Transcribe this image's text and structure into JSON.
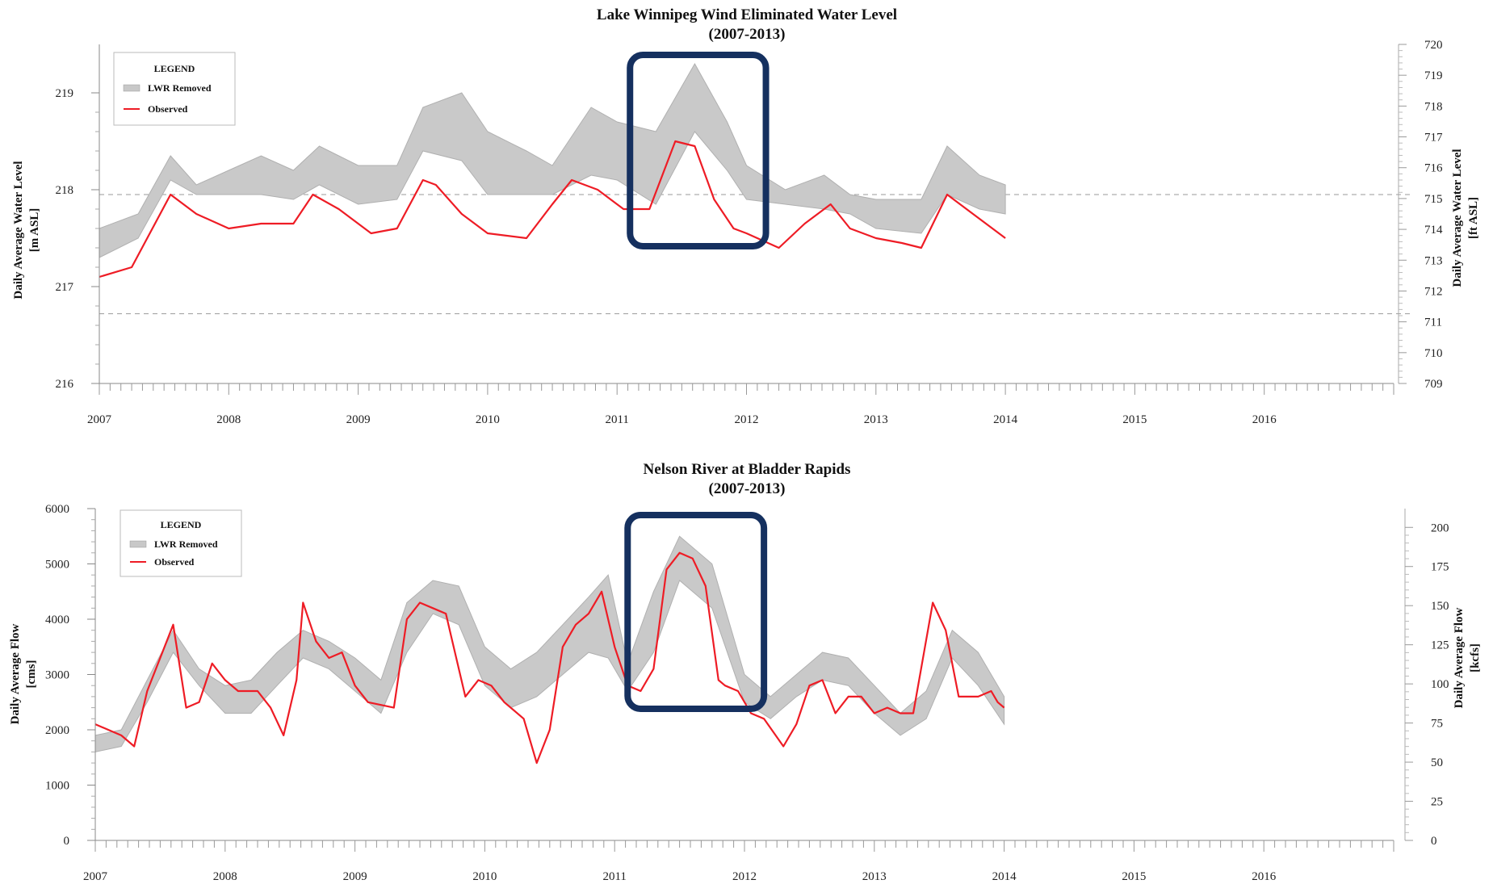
{
  "chart_data": [
    {
      "type": "area",
      "title": "Lake Winnipeg Wind Eliminated Water Level",
      "subtitle": "(2007-2013)",
      "ylabel": "Daily Average Water Level\n[m ASL]",
      "y2label": "Daily Average Water Level\n[ft ASL]",
      "xlim": [
        2007,
        2017
      ],
      "ylim": [
        216,
        219.5
      ],
      "y2lim": [
        709,
        720
      ],
      "x_ticks": [
        "2007",
        "2008",
        "2009",
        "2010",
        "2011",
        "2012",
        "2013",
        "2014",
        "2015",
        "2016"
      ],
      "y_ticks": [
        216,
        217,
        218,
        219
      ],
      "y2_ticks": [
        709,
        710,
        711,
        712,
        713,
        714,
        715,
        716,
        717,
        718,
        719,
        720
      ],
      "reference_lines_y": [
        217.95,
        216.72
      ],
      "highlight_box_x": [
        2011.1,
        2012.15
      ],
      "legend": {
        "title": "LEGEND",
        "position": "top-left",
        "entries": [
          "LWR Removed",
          "Observed"
        ]
      },
      "series": [
        {
          "name": "LWR Removed",
          "kind": "band",
          "x": [
            2007.0,
            2007.3,
            2007.55,
            2007.75,
            2008.0,
            2008.25,
            2008.5,
            2008.7,
            2009.0,
            2009.3,
            2009.5,
            2009.8,
            2010.0,
            2010.3,
            2010.5,
            2010.8,
            2011.0,
            2011.3,
            2011.6,
            2011.85,
            2012.0,
            2012.3,
            2012.6,
            2012.8,
            2013.0,
            2013.35,
            2013.55,
            2013.8,
            2014.0
          ],
          "lower": [
            217.3,
            217.5,
            218.1,
            217.95,
            217.95,
            217.95,
            217.9,
            218.05,
            217.85,
            217.9,
            218.4,
            218.3,
            217.95,
            217.95,
            217.95,
            218.15,
            218.1,
            217.85,
            218.6,
            218.2,
            217.9,
            217.85,
            217.8,
            217.75,
            217.6,
            217.55,
            217.95,
            217.8,
            217.75
          ],
          "upper": [
            217.6,
            217.75,
            218.35,
            218.05,
            218.2,
            218.35,
            218.2,
            218.45,
            218.25,
            218.25,
            218.85,
            219.0,
            218.6,
            218.4,
            218.25,
            218.85,
            218.7,
            218.6,
            219.3,
            218.7,
            218.25,
            218.0,
            218.15,
            217.95,
            217.9,
            217.9,
            218.45,
            218.15,
            218.05
          ]
        },
        {
          "name": "Observed",
          "kind": "line",
          "color": "#ee1c25",
          "x": [
            2007.0,
            2007.25,
            2007.55,
            2007.75,
            2008.0,
            2008.25,
            2008.5,
            2008.65,
            2008.85,
            2009.1,
            2009.3,
            2009.5,
            2009.6,
            2009.8,
            2010.0,
            2010.3,
            2010.5,
            2010.65,
            2010.85,
            2011.05,
            2011.25,
            2011.45,
            2011.6,
            2011.75,
            2011.9,
            2012.0,
            2012.25,
            2012.45,
            2012.65,
            2012.8,
            2013.0,
            2013.2,
            2013.35,
            2013.55,
            2013.75,
            2014.0
          ],
          "y": [
            217.1,
            217.2,
            217.95,
            217.75,
            217.6,
            217.65,
            217.65,
            217.95,
            217.8,
            217.55,
            217.6,
            218.1,
            218.05,
            217.75,
            217.55,
            217.5,
            217.85,
            218.1,
            218.0,
            217.8,
            217.8,
            218.5,
            218.45,
            217.9,
            217.6,
            217.55,
            217.4,
            217.65,
            217.85,
            217.6,
            217.5,
            217.45,
            217.4,
            217.95,
            217.75,
            217.5
          ]
        }
      ]
    },
    {
      "type": "area",
      "title": "Nelson River at Bladder Rapids",
      "subtitle": "(2007-2013)",
      "ylabel": "Daily Average Flow\n[cms]",
      "y2label": "Daily Average Flow\n[kcfs]",
      "xlim": [
        2007,
        2017
      ],
      "ylim": [
        0,
        6000
      ],
      "y2lim": [
        0,
        212
      ],
      "x_ticks": [
        "2007",
        "2008",
        "2009",
        "2010",
        "2011",
        "2012",
        "2013",
        "2014",
        "2015",
        "2016"
      ],
      "y_ticks": [
        0,
        1000,
        2000,
        3000,
        4000,
        5000,
        6000
      ],
      "y2_ticks": [
        0,
        25,
        50,
        75,
        100,
        125,
        150,
        175,
        200
      ],
      "highlight_box_x": [
        2011.1,
        2012.15
      ],
      "legend": {
        "title": "LEGEND",
        "position": "top-left",
        "entries": [
          "LWR Removed",
          "Observed"
        ]
      },
      "series": [
        {
          "name": "LWR Removed",
          "kind": "band",
          "x": [
            2007.0,
            2007.2,
            2007.4,
            2007.6,
            2007.8,
            2008.0,
            2008.2,
            2008.4,
            2008.6,
            2008.8,
            2009.0,
            2009.2,
            2009.4,
            2009.6,
            2009.8,
            2010.0,
            2010.2,
            2010.4,
            2010.6,
            2010.8,
            2010.95,
            2011.1,
            2011.3,
            2011.5,
            2011.75,
            2012.0,
            2012.2,
            2012.4,
            2012.6,
            2012.8,
            2013.0,
            2013.2,
            2013.4,
            2013.6,
            2013.8,
            2014.0
          ],
          "lower": [
            1600,
            1700,
            2500,
            3400,
            2800,
            2300,
            2300,
            2800,
            3300,
            3100,
            2700,
            2300,
            3400,
            4100,
            3900,
            2800,
            2400,
            2600,
            3000,
            3400,
            3300,
            2700,
            3400,
            4700,
            4200,
            2500,
            2200,
            2600,
            2900,
            2800,
            2300,
            1900,
            2200,
            3300,
            2800,
            2100
          ],
          "upper": [
            1900,
            2000,
            2900,
            3800,
            3100,
            2800,
            2900,
            3400,
            3800,
            3600,
            3300,
            2900,
            4300,
            4700,
            4600,
            3500,
            3100,
            3400,
            3900,
            4400,
            4800,
            3200,
            4500,
            5500,
            5000,
            3000,
            2600,
            3000,
            3400,
            3300,
            2800,
            2300,
            2700,
            3800,
            3400,
            2600
          ]
        },
        {
          "name": "Observed",
          "kind": "line",
          "color": "#ee1c25",
          "x": [
            2007.0,
            2007.1,
            2007.2,
            2007.3,
            2007.4,
            2007.5,
            2007.6,
            2007.7,
            2007.8,
            2007.9,
            2008.0,
            2008.1,
            2008.25,
            2008.35,
            2008.45,
            2008.55,
            2008.6,
            2008.7,
            2008.8,
            2008.9,
            2009.0,
            2009.1,
            2009.3,
            2009.4,
            2009.5,
            2009.6,
            2009.7,
            2009.75,
            2009.85,
            2009.95,
            2010.05,
            2010.15,
            2010.3,
            2010.4,
            2010.5,
            2010.6,
            2010.7,
            2010.8,
            2010.9,
            2011.0,
            2011.1,
            2011.2,
            2011.3,
            2011.4,
            2011.5,
            2011.6,
            2011.7,
            2011.8,
            2011.85,
            2011.95,
            2012.05,
            2012.15,
            2012.3,
            2012.4,
            2012.5,
            2012.6,
            2012.7,
            2012.8,
            2012.9,
            2013.0,
            2013.1,
            2013.2,
            2013.3,
            2013.45,
            2013.55,
            2013.65,
            2013.7,
            2013.8,
            2013.9,
            2013.95,
            2014.0
          ],
          "y": [
            2100,
            2000,
            1900,
            1700,
            2700,
            3300,
            3900,
            2400,
            2500,
            3200,
            2900,
            2700,
            2700,
            2400,
            1900,
            2900,
            4300,
            3600,
            3300,
            3400,
            2800,
            2500,
            2400,
            4000,
            4300,
            4200,
            4100,
            3600,
            2600,
            2900,
            2800,
            2500,
            2200,
            1400,
            2000,
            3500,
            3900,
            4100,
            4500,
            3500,
            2800,
            2700,
            3100,
            4900,
            5200,
            5100,
            4600,
            2900,
            2800,
            2700,
            2300,
            2200,
            1700,
            2100,
            2800,
            2900,
            2300,
            2600,
            2600,
            2300,
            2400,
            2300,
            2300,
            4300,
            3800,
            2600,
            2600,
            2600,
            2700,
            2500,
            2400
          ]
        }
      ]
    }
  ]
}
